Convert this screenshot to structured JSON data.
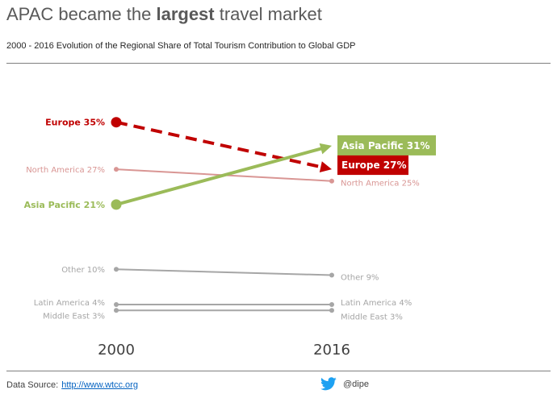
{
  "header": {
    "title_pre": "APAC became the ",
    "title_bold": "largest",
    "title_post": " travel market",
    "subtitle": "2000 - 2016 Evolution of the Regional Share of Total Tourism Contribution to Global GDP"
  },
  "footer": {
    "source_label": "Data Source:",
    "source_link": "http://www.wtcc.org",
    "handle": "@dipe"
  },
  "icons": {
    "twitter": "twitter-bird-icon"
  },
  "colors": {
    "europe": "#c00000",
    "asia_pacific": "#9bbb59",
    "north_america": "#d99694",
    "other": "#a6a6a6",
    "year_label": "#404040"
  },
  "chart_data": {
    "type": "line",
    "style": "slope",
    "x": [
      "2000",
      "2016"
    ],
    "series": [
      {
        "name": "Europe",
        "values": [
          35,
          27
        ],
        "start_label": "Europe 35%",
        "end_label": "Europe 27%",
        "color": "#c00000",
        "dashed": true,
        "highlight": true
      },
      {
        "name": "North America",
        "values": [
          27,
          25
        ],
        "start_label": "North America 27%",
        "end_label": "North America 25%",
        "color": "#d99694",
        "dashed": false,
        "highlight": false
      },
      {
        "name": "Asia Pacific",
        "values": [
          21,
          31
        ],
        "start_label": "Asia Pacific 21%",
        "end_label": "Asia Pacific 31%",
        "color": "#9bbb59",
        "dashed": false,
        "highlight": true
      },
      {
        "name": "Other",
        "values": [
          10,
          9
        ],
        "start_label": "Other 10%",
        "end_label": "Other 9%",
        "color": "#a6a6a6",
        "dashed": false,
        "highlight": false
      },
      {
        "name": "Latin America",
        "values": [
          4,
          4
        ],
        "start_label": "Latin America 4%",
        "end_label": "Latin America 4%",
        "color": "#a6a6a6",
        "dashed": false,
        "highlight": false
      },
      {
        "name": "Middle East",
        "values": [
          3,
          3
        ],
        "start_label": "Middle East 3%",
        "end_label": "Middle East 3%",
        "color": "#a6a6a6",
        "dashed": false,
        "highlight": false
      }
    ],
    "ylim": [
      0,
      40
    ],
    "grid": false,
    "legend": "none"
  }
}
